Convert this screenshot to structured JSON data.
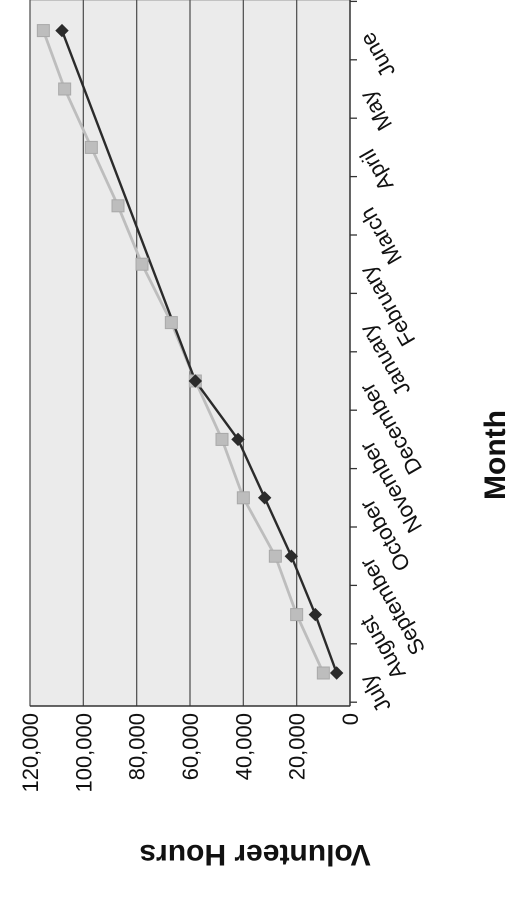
{
  "chart_data": {
    "type": "line",
    "title": "",
    "xlabel": "Month",
    "ylabel": "Volunteer Hours",
    "categories": [
      "July",
      "August",
      "September",
      "October",
      "November",
      "December",
      "January",
      "February",
      "March",
      "April",
      "May",
      "June"
    ],
    "series": [
      {
        "values": [
          5000,
          13000,
          22000,
          32000,
          42000,
          58000,
          null,
          null,
          null,
          null,
          null,
          108000
        ],
        "color": "#2b2b2b",
        "marker": "diamond"
      },
      {
        "values": [
          10000,
          20000,
          28000,
          40000,
          48000,
          58000,
          67000,
          78000,
          87000,
          97000,
          107000,
          115000
        ],
        "color": "#bdbdbd",
        "marker": "square"
      }
    ],
    "y_ticks": [
      "120,000",
      "100,000",
      "80,000",
      "60,000",
      "40,000",
      "20,000",
      "0"
    ],
    "ylim": [
      0,
      120000
    ],
    "grid": true,
    "plot_background": "#ebebeb",
    "orientation": "rotated-90-clockwise"
  }
}
